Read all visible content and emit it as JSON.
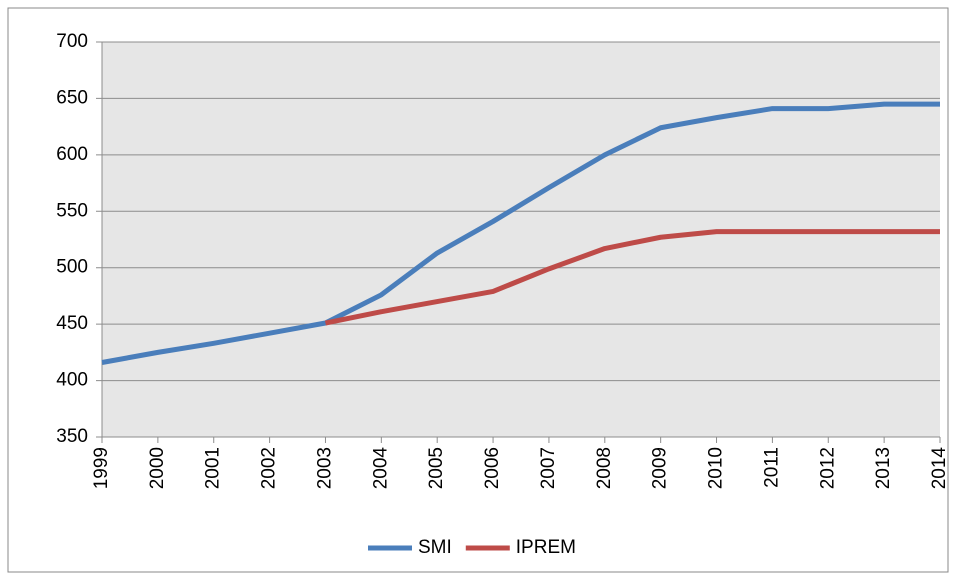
{
  "chart_data": {
    "type": "line",
    "x": [
      1999,
      2000,
      2001,
      2002,
      2003,
      2004,
      2005,
      2006,
      2007,
      2008,
      2009,
      2010,
      2011,
      2012,
      2013,
      2014
    ],
    "series": [
      {
        "name": "SMI",
        "color": "#4a7ebb",
        "values": [
          416,
          425,
          433,
          442,
          451,
          476,
          513,
          541,
          571,
          600,
          624,
          633,
          641,
          641,
          645,
          645
        ]
      },
      {
        "name": "IPREM",
        "color": "#be4b48",
        "values": [
          null,
          null,
          null,
          null,
          451,
          461,
          470,
          479,
          499,
          517,
          527,
          532,
          532,
          532,
          532,
          532
        ]
      }
    ],
    "xlim": [
      1999,
      2014
    ],
    "xticks": [
      1999,
      2000,
      2001,
      2002,
      2003,
      2004,
      2005,
      2006,
      2007,
      2008,
      2009,
      2010,
      2011,
      2012,
      2013,
      2014
    ],
    "ylim": [
      350,
      700
    ],
    "yticks": [
      350,
      400,
      450,
      500,
      550,
      600,
      650,
      700
    ],
    "grid": true,
    "legend": "bottom"
  }
}
